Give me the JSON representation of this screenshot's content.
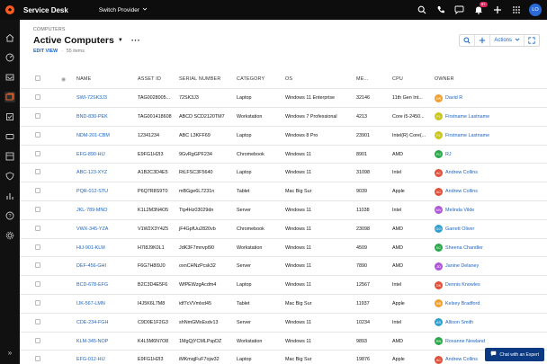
{
  "topbar": {
    "app_title": "Service Desk",
    "provider": "Switch Provider",
    "notification_count": "9+",
    "user_initials": "LO"
  },
  "page": {
    "breadcrumb": "COMPUTERS",
    "title": "Active Computers",
    "edit_view": "EDIT VIEW",
    "item_count": "55 items"
  },
  "toolbar": {
    "actions_label": "Actions"
  },
  "table": {
    "columns": [
      "NAME",
      "ASSET ID",
      "SERIAL NUMBER",
      "CATEGORY",
      "OS",
      "ME...",
      "CPU",
      "OWNER"
    ],
    "rows": [
      {
        "name": "SWI-72SK3J3",
        "asset": "TAG0028005...",
        "serial": "72SK3J3",
        "category": "Laptop",
        "os": "Windows 11 Enterprise",
        "mem": "32146",
        "cpu": "11th Gen Int...",
        "owner": "David R",
        "initials": "DR",
        "color": "#f0a030"
      },
      {
        "name": "BND-830-PEK",
        "asset": "TAG001418608",
        "serial": "ABCD SCD2120TM7",
        "category": "Workstation",
        "os": "Windows 7 Professional",
        "mem": "4213",
        "cpu": "Core i5-2450...",
        "owner": "Firstname Lastname",
        "initials": "FL",
        "color": "#c8c820"
      },
      {
        "name": "NDM-201-CBM",
        "asset": "12341234",
        "serial": "ABC L3KFF69",
        "category": "Laptop",
        "os": "Windows 8 Pro",
        "mem": "23901",
        "cpu": "Intel(R) Core(...",
        "owner": "Firstname Lastname",
        "initials": "FL",
        "color": "#c8c820"
      },
      {
        "name": "EFG-890-HIJ",
        "asset": "E9FG1H2I3",
        "serial": "9GvRgGPF234",
        "category": "Chromebook",
        "os": "Windows 11",
        "mem": "8901",
        "cpu": "AMD",
        "owner": "RJ",
        "initials": "RJ",
        "color": "#2aa84a"
      },
      {
        "name": "ABC-123-XYZ",
        "asset": "A1B2C3D4E5",
        "serial": "RtLFSC3F5640",
        "category": "Laptop",
        "os": "Windows 11",
        "mem": "31098",
        "cpu": "Intel",
        "owner": "Andrew Collins",
        "initials": "AC",
        "color": "#e0503a"
      },
      {
        "name": "PQR-012-STU",
        "asset": "P6Q7R8S9T0",
        "serial": "mBGge6L7231n",
        "category": "Tablet",
        "os": "Mac Big Sur",
        "mem": "9039",
        "cpu": "Apple",
        "owner": "Andrew Collins",
        "initials": "AC",
        "color": "#e0503a"
      },
      {
        "name": "JKL-789-MNO",
        "asset": "K1L2M3N4O5",
        "serial": "Ttp4Hz03029dn",
        "category": "Server",
        "os": "Windows 11",
        "mem": "11038",
        "cpu": "Intel",
        "owner": "Melinda Vilde",
        "initials": "MV",
        "color": "#b056d8"
      },
      {
        "name": "VWX-345-YZA",
        "asset": "V1W2X3Y4Z5",
        "serial": "jF4GpfUu2820vb",
        "category": "Chromebook",
        "os": "Windows 11",
        "mem": "23098",
        "cpu": "AMD",
        "owner": "Garrett Oliver",
        "initials": "GO",
        "color": "#30a0d0"
      },
      {
        "name": "HIJ-901-KLM",
        "asset": "H7I8J9K0L1",
        "serial": "JdK3F7mnvpl90",
        "category": "Workstation",
        "os": "Windows 11",
        "mem": "4509",
        "cpu": "AMD",
        "owner": "Sheena Chandler",
        "initials": "SC",
        "color": "#2aa84a"
      },
      {
        "name": "DEF-456-GHI",
        "asset": "F6G7H8I9J0",
        "serial": "oxnCHNzPcsk32",
        "category": "Server",
        "os": "Windows 11",
        "mem": "7890",
        "cpu": "AMD",
        "owner": "Janine Delaney",
        "initials": "JD",
        "color": "#b056d8"
      },
      {
        "name": "BCD-678-EFG",
        "asset": "B2C3D4E5F6",
        "serial": "WfPEWzgAcdm4",
        "category": "Laptop",
        "os": "Windows 11",
        "mem": "12567",
        "cpu": "Intel",
        "owner": "Dennis Knowles",
        "initials": "DK",
        "color": "#e0503a"
      },
      {
        "name": "IJK-567-LMN",
        "asset": "I4J5K6L7M8",
        "serial": "idf7cVVmlxd45",
        "category": "Tablet",
        "os": "Mac Big Sur",
        "mem": "11937",
        "cpu": "Apple",
        "owner": "Kelsey Bradford",
        "initials": "KB",
        "color": "#f0a030"
      },
      {
        "name": "CDE-234-FGH",
        "asset": "C9D0E1F2G3",
        "serial": "shNmGMxEsdv13",
        "category": "Server",
        "os": "Windows 11",
        "mem": "10234",
        "cpu": "Intel",
        "owner": "Allison Smith",
        "initials": "AS",
        "color": "#30a0d0"
      },
      {
        "name": "KLM-345-NOP",
        "asset": "K4L5M6N7O8",
        "serial": "1MgQjYCMLPspDZ",
        "category": "Workstation",
        "os": "Windows 11",
        "mem": "9893",
        "cpu": "AMD",
        "owner": "Roxanne Newland",
        "initials": "RN",
        "color": "#2aa84a"
      },
      {
        "name": "EFG-012-HIJ",
        "asset": "E9FG1H2I3",
        "serial": "iMKmqjFuF7ojw32",
        "category": "Laptop",
        "os": "Mac Big Sur",
        "mem": "19876",
        "cpu": "Apple",
        "owner": "Andrew Collins",
        "initials": "AC",
        "color": "#e0503a"
      }
    ]
  },
  "chat": {
    "label": "Chat with an Expert"
  }
}
